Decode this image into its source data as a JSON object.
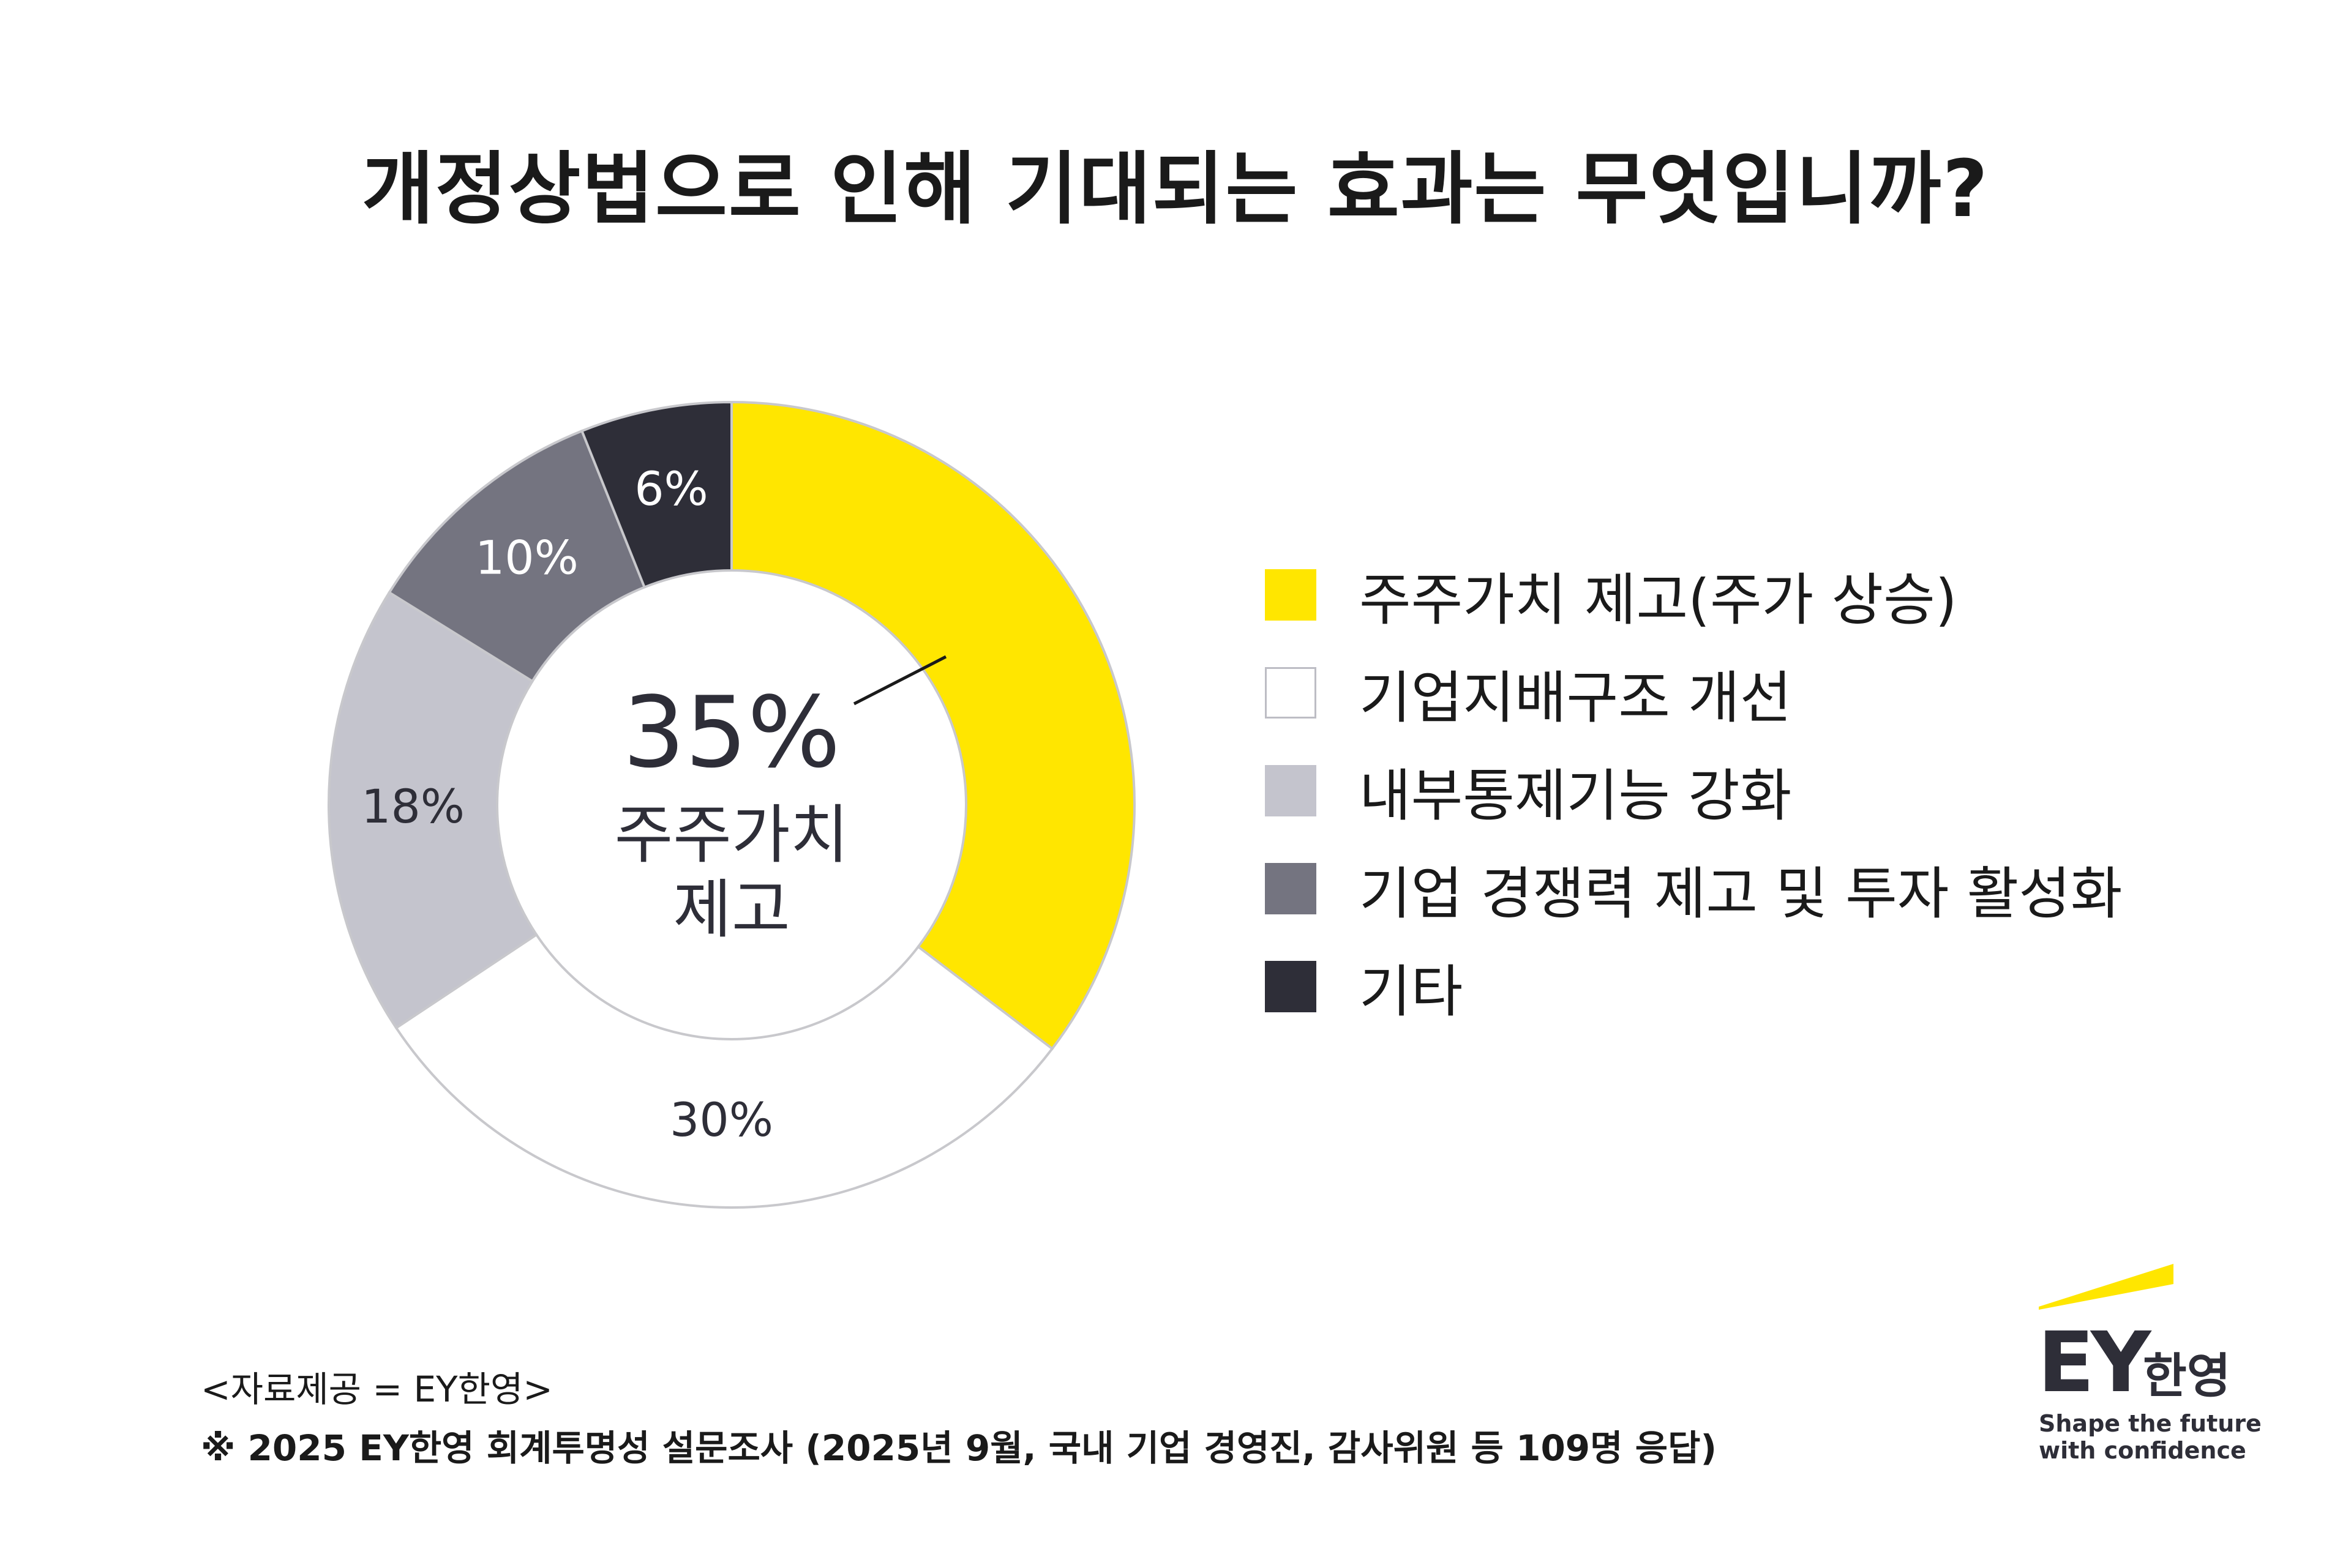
{
  "title": "개정상법으로 인해 기대되는 효과는 무엇입니까?",
  "chart_data": {
    "type": "pie",
    "categories": [
      "주주가치 제고(주가 상승)",
      "기업지배구조 개선",
      "내부통제기능 강화",
      "기업 경쟁력 제고 및 투자 활성화",
      "기타"
    ],
    "values": [
      35,
      30,
      18,
      10,
      6
    ],
    "data_labels": [
      "",
      "30%",
      "18%",
      "10%",
      "6%"
    ],
    "colors": [
      "#ffe600",
      "#ffffff",
      "#c4c4cd",
      "#747480",
      "#2e2e38"
    ],
    "label_colors": [
      "#2e2e38",
      "#2e2e38",
      "#2e2e38",
      "#ffffff",
      "#ffffff"
    ],
    "legend_position": "right",
    "center_value": "35%",
    "center_label_lines": [
      "주주가치",
      "제고"
    ]
  },
  "footer": {
    "source": "<자료제공 = EY한영>",
    "note": "※ 2025 EY한영 회계투명성 설문조사 (2025년 9월, 국내 기업 경영진, 감사위원 등 109명 응답)"
  },
  "logo": {
    "brand": "EY",
    "brand_korean": "한영",
    "tagline_1": "Shape the future",
    "tagline_2": "with confidence",
    "beam_color": "#ffe600"
  }
}
